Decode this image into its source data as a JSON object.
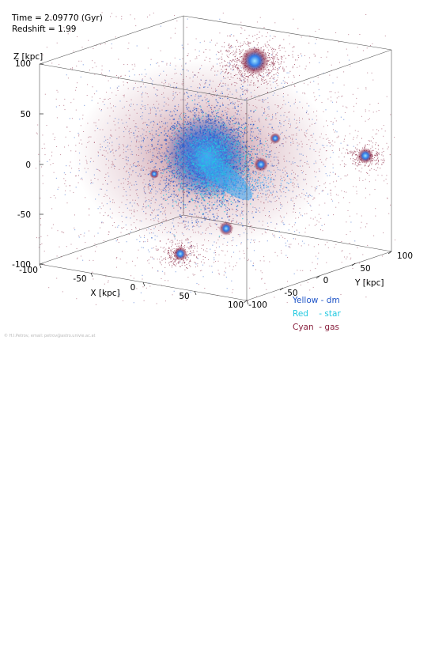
{
  "header": {
    "time_text": "Time = 2.09770 (Gyr)",
    "redshift_text": "Redshift = 1.99"
  },
  "legend": [
    {
      "text": "Yellow - dm",
      "color": "#1f55c8"
    },
    {
      "text": "Red    - star",
      "color": "#22c9e0"
    },
    {
      "text": "Cyan  - gas",
      "color": "#8a2340"
    }
  ],
  "credit": "© H.I.Petrov, email: petrov@astro.univie.ac.at",
  "chart_data": {
    "type": "scatter3d",
    "title": "",
    "xlabel": "X [kpc]",
    "ylabel": "Y [kpc]",
    "zlabel": "Z [kpc]",
    "xlim": [
      -100,
      100
    ],
    "ylim": [
      -100,
      100
    ],
    "zlim": [
      -100,
      100
    ],
    "x_ticks": [
      "-100",
      "-50",
      "0",
      "50",
      "100"
    ],
    "y_ticks": [
      "-100",
      "-50",
      "0",
      "50",
      "100"
    ],
    "z_ticks": [
      "100",
      "50",
      "0",
      "-50",
      "-100"
    ],
    "grid": false,
    "legend_position": "bottom-right",
    "series": [
      {
        "name": "Yellow - dm",
        "color": "#1f55c8"
      },
      {
        "name": "Red    - star",
        "color": "#22c9e0"
      },
      {
        "name": "Cyan  - gas",
        "color": "#8a2340"
      }
    ],
    "colors": {
      "gas": "#8a2340",
      "dm": "#1f55c8",
      "star": "#22c9e0",
      "bright_dm": "#3fa8f5"
    }
  }
}
